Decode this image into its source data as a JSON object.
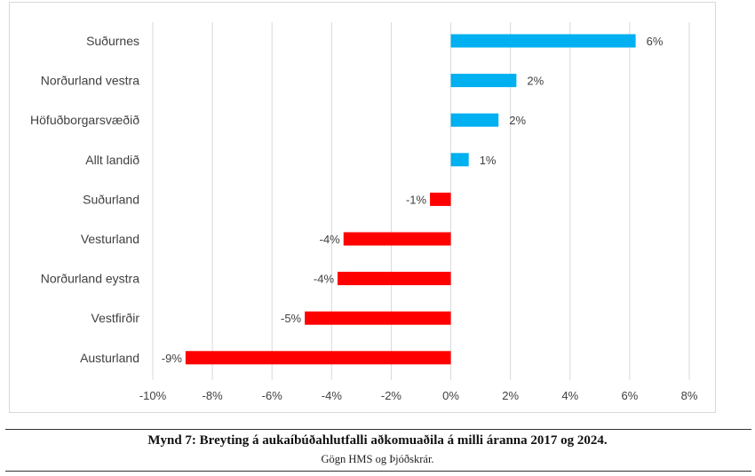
{
  "chart_data": {
    "type": "bar",
    "orientation": "horizontal",
    "categories": [
      "Suðurnes",
      "Norðurland vestra",
      "Höfuðborgarsvæðið",
      "Allt landið",
      "Suðurland",
      "Vesturland",
      "Norðurland eystra",
      "Vestfirðir",
      "Austurland"
    ],
    "values": [
      6.2,
      2.2,
      1.6,
      0.6,
      -0.7,
      -3.6,
      -3.8,
      -4.9,
      -8.9
    ],
    "data_labels": [
      "6%",
      "2%",
      "2%",
      "1%",
      "-1%",
      "-4%",
      "-4%",
      "-5%",
      "-9%"
    ],
    "xlim": [
      -10,
      8
    ],
    "xticks": [
      -10,
      -8,
      -6,
      -4,
      -2,
      0,
      2,
      4,
      6,
      8
    ],
    "xtick_labels": [
      "-10%",
      "-8%",
      "-6%",
      "-4%",
      "-2%",
      "0%",
      "2%",
      "4%",
      "6%",
      "8%"
    ],
    "positive_color": "#00b0f0",
    "negative_color": "#ff0000",
    "grid": true,
    "title": "",
    "xlabel": "",
    "ylabel": ""
  },
  "caption": {
    "title": "Mynd 7: Breyting á aukaíbúðahlutfalli aðkomuaðila á milli áranna 2017 og 2024.",
    "source": "Gögn HMS og Þjóðskrár."
  }
}
